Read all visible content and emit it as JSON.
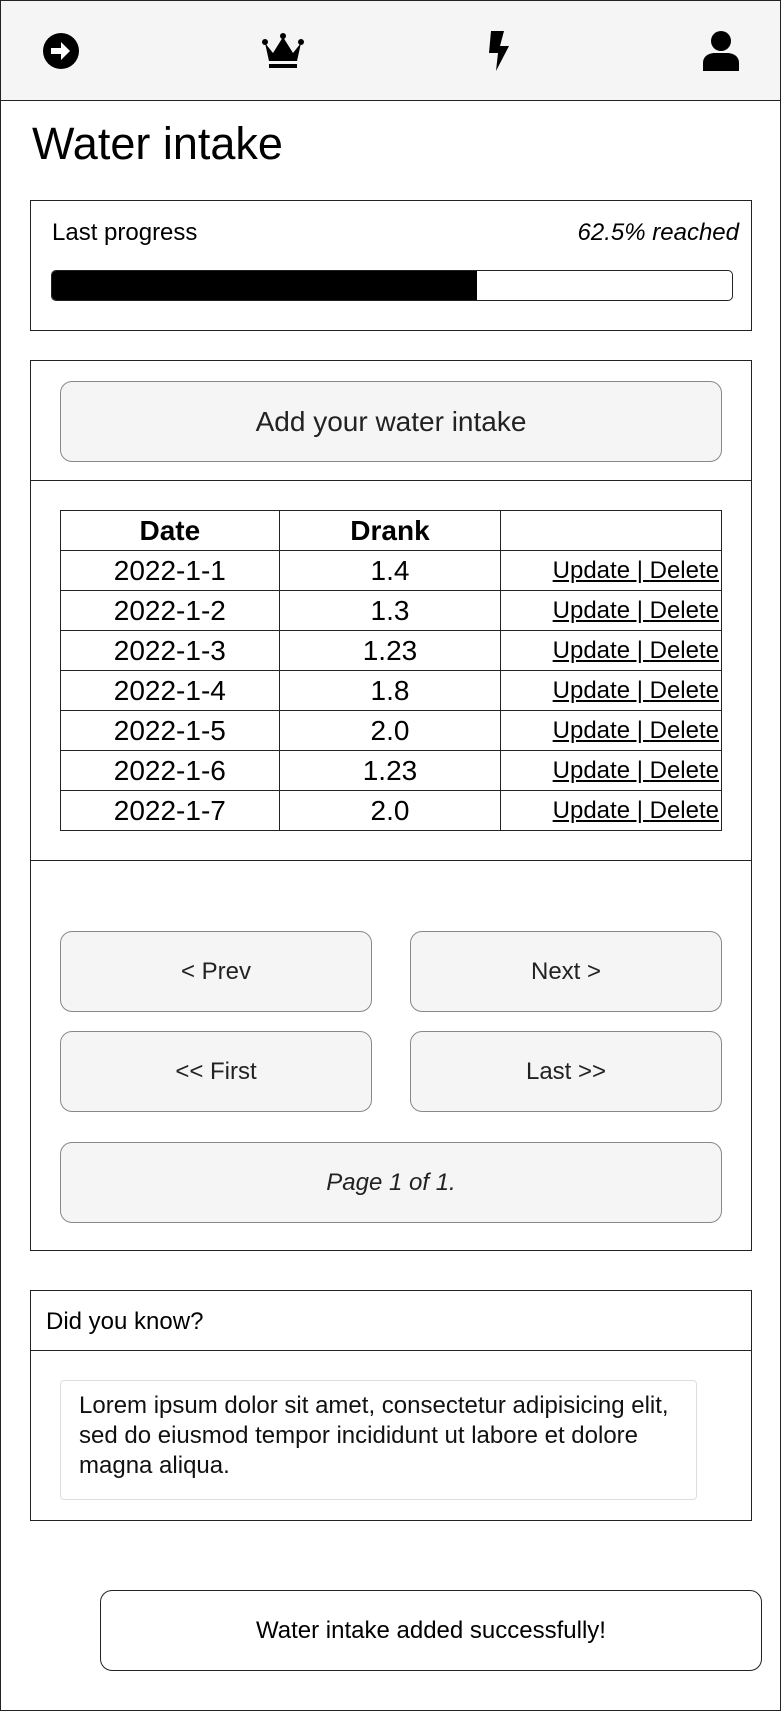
{
  "nav": {
    "items": [
      {
        "name": "logout",
        "icon": "arrow-right-circle-icon"
      },
      {
        "name": "leaderboard",
        "icon": "crown-icon"
      },
      {
        "name": "activity",
        "icon": "lightning-bolt-icon"
      },
      {
        "name": "profile",
        "icon": "user-icon"
      }
    ]
  },
  "page": {
    "title": "Water intake"
  },
  "progress": {
    "label": "Last progress",
    "reached_text": "62.5% reached",
    "percent": 62.5
  },
  "add_button": {
    "label": "Add your water intake"
  },
  "table": {
    "headers": [
      "Date",
      "Drank",
      ""
    ],
    "rows": [
      {
        "date": "2022-1-1",
        "drank": "1.4"
      },
      {
        "date": "2022-1-2",
        "drank": "1.3"
      },
      {
        "date": "2022-1-3",
        "drank": "1.23"
      },
      {
        "date": "2022-1-4",
        "drank": "1.8"
      },
      {
        "date": "2022-1-5",
        "drank": "2.0"
      },
      {
        "date": "2022-1-6",
        "drank": "1.23"
      },
      {
        "date": "2022-1-7",
        "drank": "2.0"
      }
    ],
    "update_label": "Update",
    "separator": " | ",
    "delete_label": "Delete"
  },
  "pager": {
    "prev_label": "< Prev",
    "next_label": "Next >",
    "first_label": "<< First",
    "last_label": "Last >>",
    "page_text": "Page 1 of 1."
  },
  "tip": {
    "title": "Did you know?",
    "body": "Lorem ipsum dolor sit amet, consectetur adipisicing elit, sed do eiusmod tempor incididunt ut labore et dolore magna aliqua."
  },
  "toast": {
    "message": "Water intake added successfully!"
  },
  "colors": {
    "progress_fill": "#000000",
    "button_bg": "#f5f5f5",
    "navbar_bg": "#f5f5f5"
  }
}
